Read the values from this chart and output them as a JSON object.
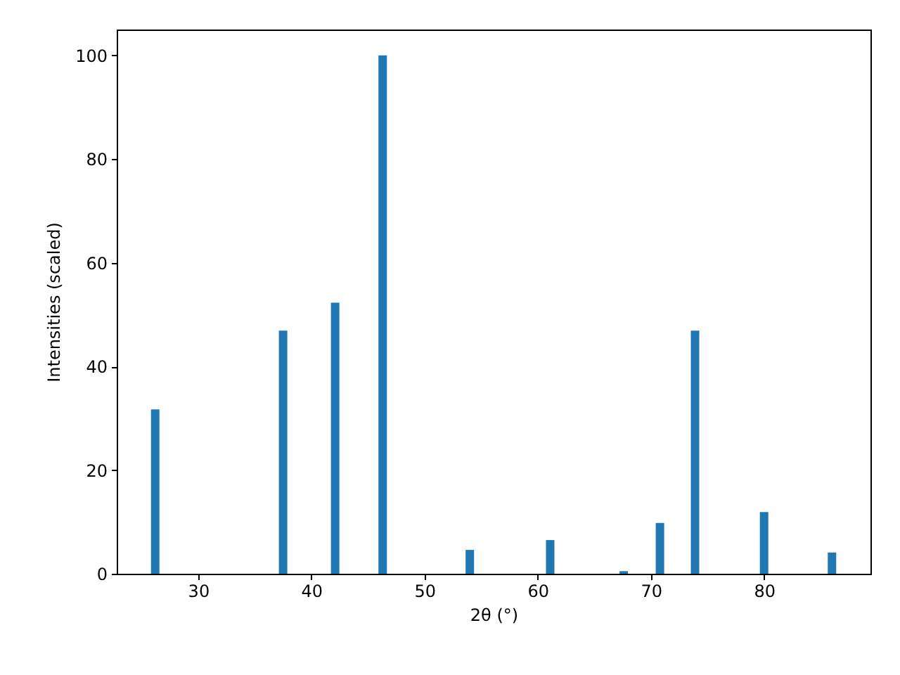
{
  "chart_data": {
    "type": "bar",
    "xlabel": "2θ (°)",
    "ylabel": "Intensities (scaled)",
    "x": [
      26.2,
      37.5,
      42.1,
      46.3,
      54.0,
      61.1,
      67.6,
      70.8,
      73.9,
      80.0,
      86.0
    ],
    "series": [
      {
        "color": "#1f77b4",
        "values": [
          31.7,
          46.9,
          52.3,
          100,
          4.6,
          6.5,
          0.5,
          9.8,
          46.9,
          11.9,
          4.1
        ]
      }
    ],
    "xlim": [
      22.8,
      89.4
    ],
    "ylim": [
      0,
      105
    ],
    "xticks": [
      30,
      40,
      50,
      60,
      70,
      80
    ],
    "yticks": [
      0,
      20,
      40,
      60,
      80,
      100
    ],
    "grid": false,
    "legend": false
  }
}
